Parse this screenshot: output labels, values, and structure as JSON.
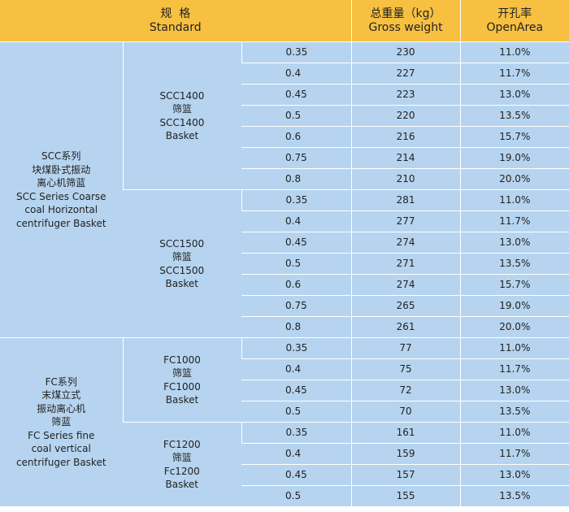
{
  "header": {
    "standard_zh": "规  格",
    "standard_en": "Standard",
    "weight_zh": "总重量（kg）",
    "weight_en": "Gross weight",
    "open_zh": "开孔率",
    "open_en": "OpenArea"
  },
  "groups": [
    {
      "label": [
        "SCC系列",
        "块煤卧式振动",
        "离心机筛蓝",
        "SCC Series Coarse",
        "coal Horizontal",
        "centrifuger Basket"
      ],
      "models": [
        {
          "label": [
            "SCC1400",
            "筛篮",
            "SCC1400",
            "Basket"
          ],
          "rows": [
            {
              "thickness": "0.35",
              "weight": "230",
              "open": "11.0%"
            },
            {
              "thickness": "0.4",
              "weight": "227",
              "open": "11.7%"
            },
            {
              "thickness": "0.45",
              "weight": "223",
              "open": "13.0%"
            },
            {
              "thickness": "0.5",
              "weight": "220",
              "open": "13.5%"
            },
            {
              "thickness": "0.6",
              "weight": "216",
              "open": "15.7%"
            },
            {
              "thickness": "0.75",
              "weight": "214",
              "open": "19.0%"
            },
            {
              "thickness": "0.8",
              "weight": "210",
              "open": "20.0%"
            }
          ]
        },
        {
          "label": [
            "SCC1500",
            "筛篮",
            "SCC1500",
            "Basket"
          ],
          "rows": [
            {
              "thickness": "0.35",
              "weight": "281",
              "open": "11.0%"
            },
            {
              "thickness": "0.4",
              "weight": "277",
              "open": "11.7%"
            },
            {
              "thickness": "0.45",
              "weight": "274",
              "open": "13.0%"
            },
            {
              "thickness": "0.5",
              "weight": "271",
              "open": "13.5%"
            },
            {
              "thickness": "0.6",
              "weight": "274",
              "open": "15.7%"
            },
            {
              "thickness": "0.75",
              "weight": "265",
              "open": "19.0%"
            },
            {
              "thickness": "0.8",
              "weight": "261",
              "open": "20.0%"
            }
          ]
        }
      ]
    },
    {
      "label": [
        "FC系列",
        "末煤立式",
        "振动离心机",
        "筛蓝",
        "FC Series fine",
        "coal vertical",
        "centrifuger Basket"
      ],
      "models": [
        {
          "label": [
            "FC1000",
            "筛篮",
            "FC1000",
            "Basket"
          ],
          "rows": [
            {
              "thickness": "0.35",
              "weight": "77",
              "open": "11.0%"
            },
            {
              "thickness": "0.4",
              "weight": "75",
              "open": "11.7%"
            },
            {
              "thickness": "0.45",
              "weight": "72",
              "open": "13.0%"
            },
            {
              "thickness": "0.5",
              "weight": "70",
              "open": "13.5%"
            }
          ]
        },
        {
          "label": [
            "FC1200",
            "筛篮",
            "Fc1200",
            "Basket"
          ],
          "rows": [
            {
              "thickness": "0.35",
              "weight": "161",
              "open": "11.0%"
            },
            {
              "thickness": "0.4",
              "weight": "159",
              "open": "11.7%"
            },
            {
              "thickness": "0.45",
              "weight": "157",
              "open": "13.0%"
            },
            {
              "thickness": "0.5",
              "weight": "155",
              "open": "13.5%"
            }
          ]
        }
      ]
    }
  ]
}
